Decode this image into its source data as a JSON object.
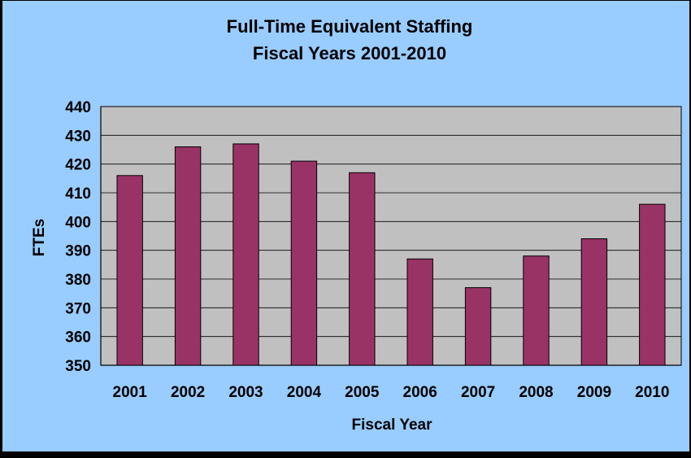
{
  "chart_data": {
    "type": "bar",
    "title": "Full-Time Equivalent Staffing",
    "subtitle": "Fiscal Years 2001-2010",
    "xlabel": "Fiscal Year",
    "ylabel": "FTEs",
    "categories": [
      "2001",
      "2002",
      "2003",
      "2004",
      "2005",
      "2006",
      "2007",
      "2008",
      "2009",
      "2010"
    ],
    "values": [
      416,
      426,
      427,
      421,
      417,
      387,
      377,
      388,
      394,
      406
    ],
    "ylim": [
      350,
      440
    ],
    "yticks": [
      350,
      360,
      370,
      380,
      390,
      400,
      410,
      420,
      430,
      440
    ],
    "grid": true,
    "legend": "none",
    "colors": {
      "bar": "#993366",
      "plot_background": "#c0c0c0",
      "chart_background": "#99ccff",
      "gridline": "#000000"
    }
  }
}
